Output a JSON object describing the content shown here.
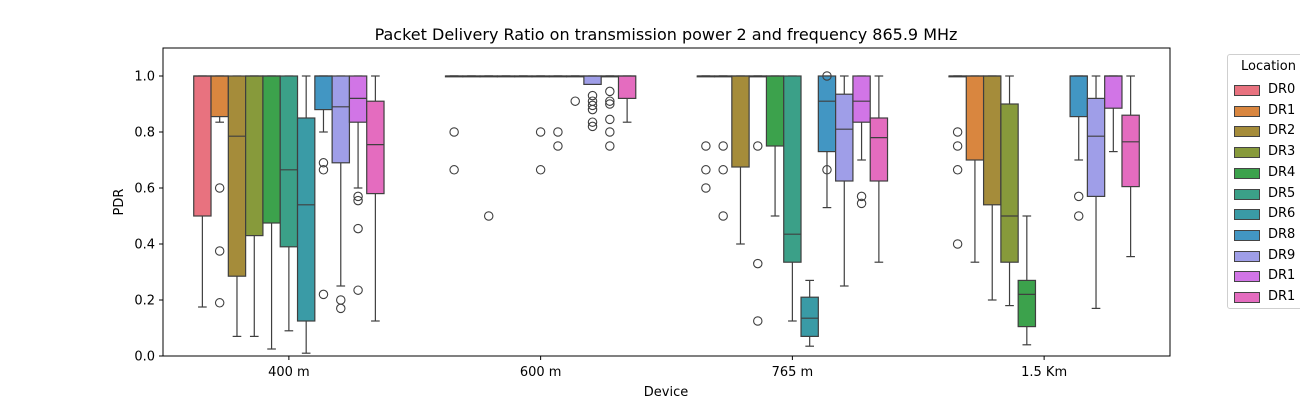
{
  "chart_data": {
    "type": "box",
    "title": "Packet Delivery Ratio on transmission power 2 and frequency 865.9 MHz",
    "xlabel": "Device",
    "ylabel": "PDR",
    "ylim": [
      0.0,
      1.1
    ],
    "yticks": [
      "0.0",
      "0.2",
      "0.4",
      "0.6",
      "0.8",
      "1.0"
    ],
    "categories": [
      "400 m",
      "600 m",
      "765 m",
      "1.5 Km"
    ],
    "legend": {
      "title": "Location",
      "placement": "outside-right",
      "items": [
        {
          "label": "DR0",
          "color": "#e8727f"
        },
        {
          "label": "DR1",
          "color": "#d9863f"
        },
        {
          "label": "DR2",
          "color": "#a58c3a"
        },
        {
          "label": "DR3",
          "color": "#879a3b"
        },
        {
          "label": "DR4",
          "color": "#3ca24c"
        },
        {
          "label": "DR5",
          "color": "#3ba088"
        },
        {
          "label": "DR6",
          "color": "#3a9ba6"
        },
        {
          "label": "DR8",
          "color": "#4296c3"
        },
        {
          "label": "DR9",
          "color": "#9f9ee8"
        },
        {
          "label": "DR1",
          "color": "#d175e6"
        },
        {
          "label": "DR1",
          "color": "#e46cbf"
        }
      ]
    },
    "groups": [
      {
        "category": "400 m",
        "boxes": [
          {
            "series": "DR0",
            "q1": 0.5,
            "median": 1.0,
            "q3": 1.0,
            "whislo": 0.175,
            "whishi": 1.0,
            "fliers": []
          },
          {
            "series": "DR1",
            "q1": 0.855,
            "median": 1.0,
            "q3": 1.0,
            "whislo": 0.835,
            "whishi": 1.0,
            "fliers": [
              0.6,
              0.375,
              0.19
            ]
          },
          {
            "series": "DR2",
            "q1": 0.285,
            "median": 0.785,
            "q3": 1.0,
            "whislo": 0.07,
            "whishi": 1.0,
            "fliers": []
          },
          {
            "series": "DR3",
            "q1": 0.43,
            "median": 1.0,
            "q3": 1.0,
            "whislo": 0.07,
            "whishi": 1.0,
            "fliers": []
          },
          {
            "series": "DR4",
            "q1": 0.475,
            "median": 1.0,
            "q3": 1.0,
            "whislo": 0.025,
            "whishi": 1.0,
            "fliers": []
          },
          {
            "series": "DR5",
            "q1": 0.39,
            "median": 0.665,
            "q3": 1.0,
            "whislo": 0.09,
            "whishi": 1.0,
            "fliers": []
          },
          {
            "series": "DR6",
            "q1": 0.125,
            "median": 0.54,
            "q3": 0.85,
            "whislo": 0.01,
            "whishi": 1.0,
            "fliers": []
          },
          {
            "series": "DR8",
            "q1": 0.88,
            "median": 1.0,
            "q3": 1.0,
            "whislo": 0.8,
            "whishi": 1.0,
            "fliers": [
              0.69,
              0.665,
              0.22
            ]
          },
          {
            "series": "DR9",
            "q1": 0.69,
            "median": 0.89,
            "q3": 1.0,
            "whislo": 0.25,
            "whishi": 1.0,
            "fliers": [
              0.2,
              0.17
            ]
          },
          {
            "series": "DR1",
            "q1": 0.835,
            "median": 0.92,
            "q3": 1.0,
            "whislo": 0.6,
            "whishi": 1.0,
            "fliers": [
              0.57,
              0.555,
              0.455,
              0.235
            ]
          },
          {
            "series": "DR1",
            "q1": 0.58,
            "median": 0.755,
            "q3": 0.91,
            "whislo": 0.125,
            "whishi": 1.0,
            "fliers": []
          }
        ]
      },
      {
        "category": "600 m",
        "boxes": [
          {
            "series": "DR0",
            "q1": 1.0,
            "median": 1.0,
            "q3": 1.0,
            "whislo": 1.0,
            "whishi": 1.0,
            "fliers": [
              0.8,
              0.665
            ]
          },
          {
            "series": "DR1",
            "q1": 1.0,
            "median": 1.0,
            "q3": 1.0,
            "whislo": 1.0,
            "whishi": 1.0,
            "fliers": []
          },
          {
            "series": "DR2",
            "q1": 1.0,
            "median": 1.0,
            "q3": 1.0,
            "whislo": 1.0,
            "whishi": 1.0,
            "fliers": [
              0.5
            ]
          },
          {
            "series": "DR3",
            "q1": 1.0,
            "median": 1.0,
            "q3": 1.0,
            "whislo": 1.0,
            "whishi": 1.0,
            "fliers": []
          },
          {
            "series": "DR4",
            "q1": 1.0,
            "median": 1.0,
            "q3": 1.0,
            "whislo": 1.0,
            "whishi": 1.0,
            "fliers": []
          },
          {
            "series": "DR5",
            "q1": 1.0,
            "median": 1.0,
            "q3": 1.0,
            "whislo": 1.0,
            "whishi": 1.0,
            "fliers": [
              0.8,
              0.665
            ]
          },
          {
            "series": "DR6",
            "q1": 1.0,
            "median": 1.0,
            "q3": 1.0,
            "whislo": 1.0,
            "whishi": 1.0,
            "fliers": [
              0.8,
              0.75
            ]
          },
          {
            "series": "DR8",
            "q1": 1.0,
            "median": 1.0,
            "q3": 1.0,
            "whislo": 1.0,
            "whishi": 1.0,
            "fliers": [
              0.91
            ]
          },
          {
            "series": "DR9",
            "q1": 0.97,
            "median": 1.0,
            "q3": 1.0,
            "whislo": 0.97,
            "whishi": 1.0,
            "fliers": [
              0.93,
              0.91,
              0.895,
              0.88,
              0.835,
              0.82
            ]
          },
          {
            "series": "DR1",
            "q1": 1.0,
            "median": 1.0,
            "q3": 1.0,
            "whislo": 1.0,
            "whishi": 1.0,
            "fliers": [
              0.945,
              0.91,
              0.9,
              0.845,
              0.8,
              0.75
            ]
          },
          {
            "series": "DR1",
            "q1": 0.92,
            "median": 1.0,
            "q3": 1.0,
            "whislo": 0.835,
            "whishi": 1.0,
            "fliers": []
          }
        ]
      },
      {
        "category": "765 m",
        "boxes": [
          {
            "series": "DR0",
            "q1": 1.0,
            "median": 1.0,
            "q3": 1.0,
            "whislo": 1.0,
            "whishi": 1.0,
            "fliers": [
              0.75,
              0.665,
              0.6
            ]
          },
          {
            "series": "DR1",
            "q1": 1.0,
            "median": 1.0,
            "q3": 1.0,
            "whislo": 1.0,
            "whishi": 1.0,
            "fliers": [
              0.75,
              0.665,
              0.5
            ]
          },
          {
            "series": "DR2",
            "q1": 0.675,
            "median": 1.0,
            "q3": 1.0,
            "whislo": 0.4,
            "whishi": 1.0,
            "fliers": []
          },
          {
            "series": "DR3",
            "q1": 1.0,
            "median": 1.0,
            "q3": 1.0,
            "whislo": 1.0,
            "whishi": 1.0,
            "fliers": [
              0.75,
              0.33,
              0.125
            ]
          },
          {
            "series": "DR4",
            "q1": 0.75,
            "median": 1.0,
            "q3": 1.0,
            "whislo": 0.5,
            "whishi": 1.0,
            "fliers": []
          },
          {
            "series": "DR5",
            "q1": 0.335,
            "median": 0.435,
            "q3": 1.0,
            "whislo": 0.125,
            "whishi": 1.0,
            "fliers": []
          },
          {
            "series": "DR6",
            "q1": 0.07,
            "median": 0.135,
            "q3": 0.21,
            "whislo": 0.035,
            "whishi": 0.27,
            "fliers": []
          },
          {
            "series": "DR8",
            "q1": 0.73,
            "median": 0.91,
            "q3": 1.0,
            "whislo": 0.53,
            "whishi": 1.0,
            "fliers": [
              1.0,
              0.665
            ]
          },
          {
            "series": "DR9",
            "q1": 0.625,
            "median": 0.81,
            "q3": 0.935,
            "whislo": 0.25,
            "whishi": 1.0,
            "fliers": []
          },
          {
            "series": "DR1",
            "q1": 0.835,
            "median": 0.91,
            "q3": 1.0,
            "whislo": 0.7,
            "whishi": 1.0,
            "fliers": [
              0.57,
              0.545
            ]
          },
          {
            "series": "DR1",
            "q1": 0.625,
            "median": 0.78,
            "q3": 0.85,
            "whislo": 0.335,
            "whishi": 1.0,
            "fliers": []
          }
        ]
      },
      {
        "category": "1.5 Km",
        "boxes": [
          {
            "series": "DR0",
            "q1": 1.0,
            "median": 1.0,
            "q3": 1.0,
            "whislo": 1.0,
            "whishi": 1.0,
            "fliers": [
              0.8,
              0.75,
              0.665,
              0.4
            ]
          },
          {
            "series": "DR1",
            "q1": 0.7,
            "median": 1.0,
            "q3": 1.0,
            "whislo": 0.335,
            "whishi": 1.0,
            "fliers": []
          },
          {
            "series": "DR2",
            "q1": 0.54,
            "median": 1.0,
            "q3": 1.0,
            "whislo": 0.2,
            "whishi": 1.0,
            "fliers": []
          },
          {
            "series": "DR3",
            "q1": 0.335,
            "median": 0.5,
            "q3": 0.9,
            "whislo": 0.18,
            "whishi": 1.0,
            "fliers": []
          },
          {
            "series": "DR4",
            "q1": 0.105,
            "median": 0.22,
            "q3": 0.27,
            "whislo": 0.04,
            "whishi": 0.5,
            "fliers": []
          },
          {
            "series": "DR5",
            "q1": null,
            "median": null,
            "q3": null,
            "whislo": null,
            "whishi": null,
            "fliers": []
          },
          {
            "series": "DR6",
            "q1": null,
            "median": null,
            "q3": null,
            "whislo": null,
            "whishi": null,
            "fliers": []
          },
          {
            "series": "DR8",
            "q1": 0.855,
            "median": 1.0,
            "q3": 1.0,
            "whislo": 0.7,
            "whishi": 1.0,
            "fliers": [
              0.57,
              0.5
            ]
          },
          {
            "series": "DR9",
            "q1": 0.57,
            "median": 0.785,
            "q3": 0.92,
            "whislo": 0.17,
            "whishi": 1.0,
            "fliers": []
          },
          {
            "series": "DR1",
            "q1": 0.885,
            "median": 1.0,
            "q3": 1.0,
            "whislo": 0.73,
            "whishi": 1.0,
            "fliers": []
          },
          {
            "series": "DR1",
            "q1": 0.605,
            "median": 0.765,
            "q3": 0.86,
            "whislo": 0.355,
            "whishi": 1.0,
            "fliers": []
          }
        ]
      }
    ]
  }
}
